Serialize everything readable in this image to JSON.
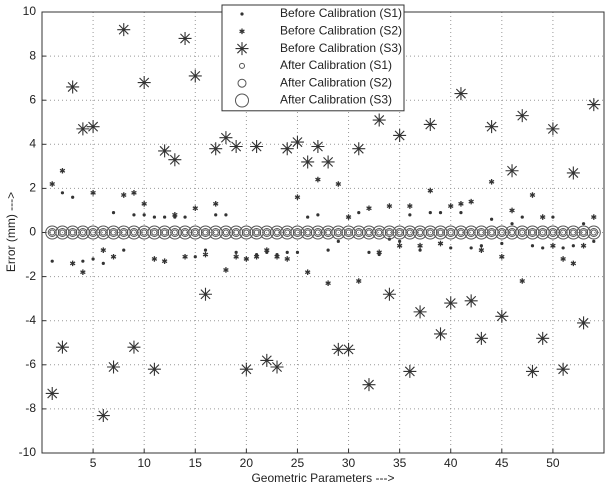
{
  "chart_data": {
    "type": "scatter",
    "xlabel": "Geometric Parameters --->",
    "ylabel": "Error (mm) --->",
    "xlim": [
      0,
      55
    ],
    "ylim": [
      -10,
      10
    ],
    "xticks": [
      5,
      10,
      15,
      20,
      25,
      30,
      35,
      40,
      45,
      50
    ],
    "yticks": [
      -10,
      -8,
      -6,
      -4,
      -2,
      0,
      2,
      4,
      6,
      8,
      10
    ],
    "grid": true,
    "legend": "upper center",
    "x": [
      1,
      2,
      3,
      4,
      5,
      6,
      7,
      8,
      9,
      10,
      11,
      12,
      13,
      14,
      15,
      16,
      17,
      18,
      19,
      20,
      21,
      22,
      23,
      24,
      25,
      26,
      27,
      28,
      29,
      30,
      31,
      32,
      33,
      34,
      35,
      36,
      37,
      38,
      39,
      40,
      41,
      42,
      43,
      44,
      45,
      46,
      47,
      48,
      49,
      50,
      51,
      52,
      53,
      54
    ],
    "series": [
      {
        "name": "Before Calibration (S1)",
        "color": "#333333",
        "marker": "dot",
        "values": [
          -1.3,
          1.8,
          1.6,
          -1.3,
          -1.2,
          -1.4,
          0.9,
          -0.8,
          0.8,
          0.8,
          0.7,
          0.7,
          0.7,
          0.7,
          -1.1,
          -0.8,
          0.8,
          0.8,
          -0.9,
          -1.2,
          -1.0,
          -0.9,
          -1.0,
          -0.9,
          -0.9,
          0.7,
          0.8,
          -0.8,
          -0.4,
          0.7,
          0.9,
          -0.9,
          -1.0,
          -0.3,
          -0.4,
          0.8,
          -0.8,
          0.9,
          0.9,
          -0.7,
          0.9,
          -0.7,
          -0.6,
          0.6,
          -0.5,
          0.4,
          0.7,
          -0.6,
          -0.7,
          0.7,
          -0.7,
          -0.6,
          0.4,
          -0.4
        ]
      },
      {
        "name": "Before Calibration (S2)",
        "color": "#333333",
        "marker": "asterisk",
        "values": [
          2.2,
          2.8,
          -1.4,
          -1.8,
          1.8,
          -0.8,
          -1.1,
          1.7,
          1.8,
          1.3,
          -1.2,
          -1.3,
          0.8,
          -1.1,
          1.1,
          -1.0,
          1.3,
          -1.7,
          -1.1,
          -1.2,
          -1.1,
          -0.8,
          -1.1,
          -1.2,
          1.6,
          -1.8,
          2.4,
          -2.3,
          2.2,
          0.7,
          -2.2,
          1.1,
          -0.9,
          1.2,
          -0.6,
          1.2,
          -0.6,
          1.9,
          -0.5,
          1.2,
          1.3,
          1.4,
          -0.8,
          2.3,
          -1.1,
          1.0,
          -2.2,
          1.7,
          0.7,
          -0.6,
          -1.2,
          -1.4,
          -0.6,
          0.7
        ]
      },
      {
        "name": "Before Calibration (S3)",
        "color": "#333333",
        "marker": "star",
        "values": [
          -7.3,
          -5.2,
          6.6,
          4.7,
          4.8,
          -8.3,
          -6.1,
          9.2,
          -5.2,
          6.8,
          -6.2,
          3.7,
          3.3,
          8.8,
          7.1,
          -2.8,
          3.8,
          4.3,
          3.9,
          -6.2,
          3.9,
          -5.8,
          -6.1,
          3.8,
          4.1,
          3.2,
          3.9,
          3.2,
          -5.3,
          -5.3,
          3.8,
          -6.9,
          5.1,
          -2.8,
          4.4,
          -6.3,
          -3.6,
          4.9,
          -4.6,
          -3.2,
          6.3,
          -3.1,
          -4.8,
          4.8,
          -3.8,
          2.8,
          5.3,
          -6.3,
          -4.8,
          4.7,
          -6.2,
          2.7,
          -4.1,
          5.8
        ]
      },
      {
        "name": "After Calibration (S1)",
        "color": "#555555",
        "marker": "circle",
        "values": [
          0,
          0,
          0,
          0,
          0,
          0,
          0,
          0,
          0,
          0,
          0,
          0,
          0,
          0,
          0,
          0,
          0,
          0,
          0,
          0,
          0,
          0,
          0,
          0,
          0,
          0,
          0,
          0,
          0,
          0,
          0,
          0,
          0,
          0,
          0,
          0,
          0,
          0,
          0,
          0,
          0,
          0,
          0,
          0,
          0,
          0,
          0,
          0,
          0,
          0,
          0,
          0,
          0,
          0
        ]
      },
      {
        "name": "After Calibration (S2)",
        "color": "#555555",
        "marker": "circle",
        "values": [
          0,
          0,
          0,
          0,
          0,
          0,
          0,
          0,
          0,
          0,
          0,
          0,
          0,
          0,
          0,
          0,
          0,
          0,
          0,
          0,
          0,
          0,
          0,
          0,
          0,
          0,
          0,
          0,
          0,
          0,
          0,
          0,
          0,
          0,
          0,
          0,
          0,
          0,
          0,
          0,
          0,
          0,
          0,
          0,
          0,
          0,
          0,
          0,
          0,
          0,
          0,
          0,
          0,
          0
        ]
      },
      {
        "name": "After Calibration (S3)",
        "color": "#555555",
        "marker": "circle",
        "values": [
          0,
          0,
          0,
          0,
          0,
          0,
          0,
          0,
          0,
          0,
          0,
          0,
          0,
          0,
          0,
          0,
          0,
          0,
          0,
          0,
          0,
          0,
          0,
          0,
          0,
          0,
          0,
          0,
          0,
          0,
          0,
          0,
          0,
          0,
          0,
          0,
          0,
          0,
          0,
          0,
          0,
          0,
          0,
          0,
          0,
          0,
          0,
          0,
          0,
          0,
          0,
          0,
          0,
          0
        ]
      }
    ]
  }
}
